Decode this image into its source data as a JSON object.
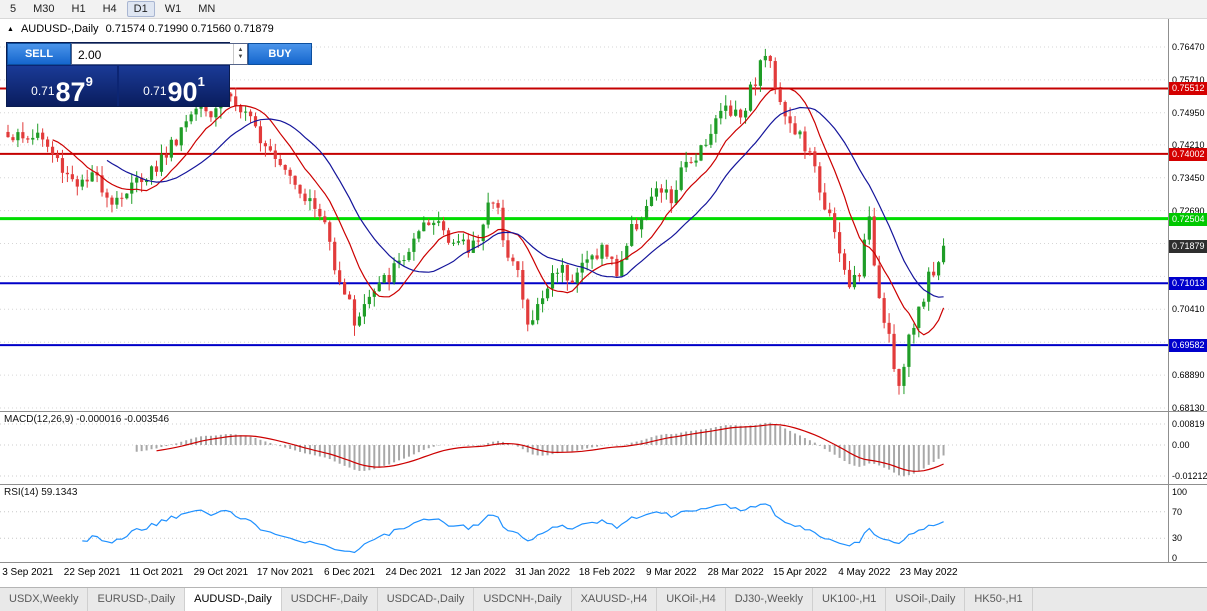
{
  "toolbar": {
    "timeframes": [
      "5",
      "M30",
      "H1",
      "H4",
      "D1",
      "W1",
      "MN"
    ],
    "active": "D1"
  },
  "title": {
    "marker": "▲",
    "symbol": "AUDUSD-,Daily",
    "ohlc": "0.71574 0.71990 0.71560 0.71879"
  },
  "icons": {
    "up": "▲",
    "down": "▼"
  },
  "trade_panel": {
    "sell_label": "SELL",
    "buy_label": "BUY",
    "volume": "2.00",
    "sell_price": {
      "prefix": "0.71",
      "big": "87",
      "sup": "9"
    },
    "buy_price": {
      "prefix": "0.71",
      "big": "90",
      "sup": "1"
    }
  },
  "panels": {
    "macd_label": "MACD(12,26,9) -0.000016 -0.003546",
    "rsi_label": "RSI(14) 59.1343"
  },
  "price_axis": {
    "ticks": [
      0.7647,
      0.7571,
      0.7495,
      0.7421,
      0.7345,
      0.7269,
      0.7193,
      0.7117,
      0.7041,
      0.6965,
      0.6889,
      0.6813
    ],
    "badges": [
      {
        "value": 0.75512,
        "color": "#d40000"
      },
      {
        "value": 0.74002,
        "color": "#d40000"
      },
      {
        "value": 0.72504,
        "color": "#00c800"
      },
      {
        "value": 0.71879,
        "color": "#2e2e2e"
      },
      {
        "value": 0.71013,
        "color": "#0000cc"
      },
      {
        "value": 0.69582,
        "color": "#0000cc"
      }
    ]
  },
  "levels": [
    {
      "price": 0.75512,
      "color": "#c40000",
      "width": 2
    },
    {
      "price": 0.74002,
      "color": "#c40000",
      "width": 2
    },
    {
      "price": 0.72504,
      "color": "#00dd00",
      "width": 3
    },
    {
      "price": 0.71013,
      "color": "#0000c8",
      "width": 2
    },
    {
      "price": 0.69582,
      "color": "#0000c8",
      "width": 2
    }
  ],
  "macd_axis": [
    {
      "label": "0.00819",
      "value": 0.00819
    },
    {
      "label": "0.00",
      "value": 0
    },
    {
      "label": "-0.01212",
      "value": -0.01212
    }
  ],
  "rsi_axis": [
    {
      "label": "100",
      "value": 100
    },
    {
      "label": "70",
      "value": 70
    },
    {
      "label": "30",
      "value": 30
    },
    {
      "label": "0",
      "value": 0
    }
  ],
  "tabs": [
    {
      "label": "USDX,Weekly",
      "active": false
    },
    {
      "label": "EURUSD-,Daily",
      "active": false
    },
    {
      "label": "AUDUSD-,Daily",
      "active": true
    },
    {
      "label": "USDCHF-,Daily",
      "active": false
    },
    {
      "label": "USDCAD-,Daily",
      "active": false
    },
    {
      "label": "USDCNH-,Daily",
      "active": false
    },
    {
      "label": "XAUUSD-,H4",
      "active": false
    },
    {
      "label": "UKOil-,H4",
      "active": false
    },
    {
      "label": "DJ30-,Weekly",
      "active": false
    },
    {
      "label": "UK100-,H1",
      "active": false
    },
    {
      "label": "USOil-,Daily",
      "active": false
    },
    {
      "label": "HK50-,H1",
      "active": false
    }
  ],
  "chart_data": {
    "type": "candlestick",
    "symbol": "AUDUSD-",
    "timeframe": "Daily",
    "ohlc_current": {
      "open": 0.71574,
      "high": 0.7199,
      "low": 0.7156,
      "close": 0.71879
    },
    "bid": 0.71879,
    "ask": 0.71901,
    "price_range": {
      "top": 0.7647,
      "bottom": 0.6813
    },
    "x_labels": [
      "3 Sep 2021",
      "22 Sep 2021",
      "11 Oct 2021",
      "29 Oct 2021",
      "17 Nov 2021",
      "6 Dec 2021",
      "24 Dec 2021",
      "12 Jan 2022",
      "31 Jan 2022",
      "18 Feb 2022",
      "9 Mar 2022",
      "28 Mar 2022",
      "15 Apr 2022",
      "4 May 2022",
      "23 May 2022"
    ],
    "first_label_index": 4,
    "candles_per_label": 13,
    "num_candles": 190,
    "last_close": 0.71879,
    "close_anchors": [
      [
        0,
        0.7452
      ],
      [
        3,
        0.743
      ],
      [
        6,
        0.7448
      ],
      [
        9,
        0.7398
      ],
      [
        12,
        0.7355
      ],
      [
        15,
        0.7328
      ],
      [
        18,
        0.7345
      ],
      [
        21,
        0.7295
      ],
      [
        24,
        0.7312
      ],
      [
        27,
        0.7348
      ],
      [
        30,
        0.7372
      ],
      [
        33,
        0.742
      ],
      [
        36,
        0.7478
      ],
      [
        39,
        0.7532
      ],
      [
        41,
        0.7495
      ],
      [
        44,
        0.7548
      ],
      [
        46,
        0.7512
      ],
      [
        49,
        0.7468
      ],
      [
        52,
        0.7432
      ],
      [
        55,
        0.739
      ],
      [
        58,
        0.734
      ],
      [
        61,
        0.7288
      ],
      [
        64,
        0.7238
      ],
      [
        66,
        0.715
      ],
      [
        68,
        0.7085
      ],
      [
        70,
        0.7015
      ],
      [
        72,
        0.7052
      ],
      [
        75,
        0.7092
      ],
      [
        78,
        0.7132
      ],
      [
        81,
        0.7178
      ],
      [
        84,
        0.7222
      ],
      [
        87,
        0.7245
      ],
      [
        90,
        0.72
      ],
      [
        93,
        0.7178
      ],
      [
        95,
        0.7212
      ],
      [
        97,
        0.7288
      ],
      [
        99,
        0.7258
      ],
      [
        101,
        0.718
      ],
      [
        103,
        0.7125
      ],
      [
        105,
        0.6998
      ],
      [
        108,
        0.7068
      ],
      [
        111,
        0.7142
      ],
      [
        114,
        0.7118
      ],
      [
        117,
        0.7152
      ],
      [
        120,
        0.7182
      ],
      [
        123,
        0.7128
      ],
      [
        126,
        0.7222
      ],
      [
        129,
        0.7282
      ],
      [
        132,
        0.7315
      ],
      [
        134,
        0.7292
      ],
      [
        136,
        0.7352
      ],
      [
        139,
        0.7402
      ],
      [
        142,
        0.7455
      ],
      [
        145,
        0.7512
      ],
      [
        148,
        0.7492
      ],
      [
        151,
        0.7575
      ],
      [
        153,
        0.7635
      ],
      [
        155,
        0.7565
      ],
      [
        158,
        0.7465
      ],
      [
        160,
        0.7438
      ],
      [
        162,
        0.7392
      ],
      [
        164,
        0.7322
      ],
      [
        166,
        0.7252
      ],
      [
        168,
        0.7162
      ],
      [
        170,
        0.7092
      ],
      [
        172,
        0.7135
      ],
      [
        174,
        0.7238
      ],
      [
        176,
        0.7075
      ],
      [
        178,
        0.6985
      ],
      [
        180,
        0.6858
      ],
      [
        182,
        0.6962
      ],
      [
        184,
        0.7045
      ],
      [
        186,
        0.7112
      ],
      [
        188,
        0.7152
      ],
      [
        189,
        0.7188
      ]
    ],
    "colors": {
      "up": "#1f9d27",
      "down": "#e23b3b"
    },
    "indicators": {
      "ma_fast": {
        "type": "sma",
        "period": 10,
        "color": "#cc0000"
      },
      "ma_slow": {
        "type": "sma",
        "period": 21,
        "color": "#15159b"
      },
      "macd": {
        "fast": 12,
        "slow": 26,
        "signal": 9,
        "value": -1.6e-05,
        "signal_value": -0.003546,
        "hist_color": "#a8a8a8",
        "signal_color": "#cc0000",
        "axis_max": 0.00819,
        "axis_min": -0.01212
      },
      "rsi": {
        "period": 14,
        "value": 59.1343,
        "color": "#1e90ff",
        "levels": [
          70,
          30
        ]
      }
    }
  }
}
